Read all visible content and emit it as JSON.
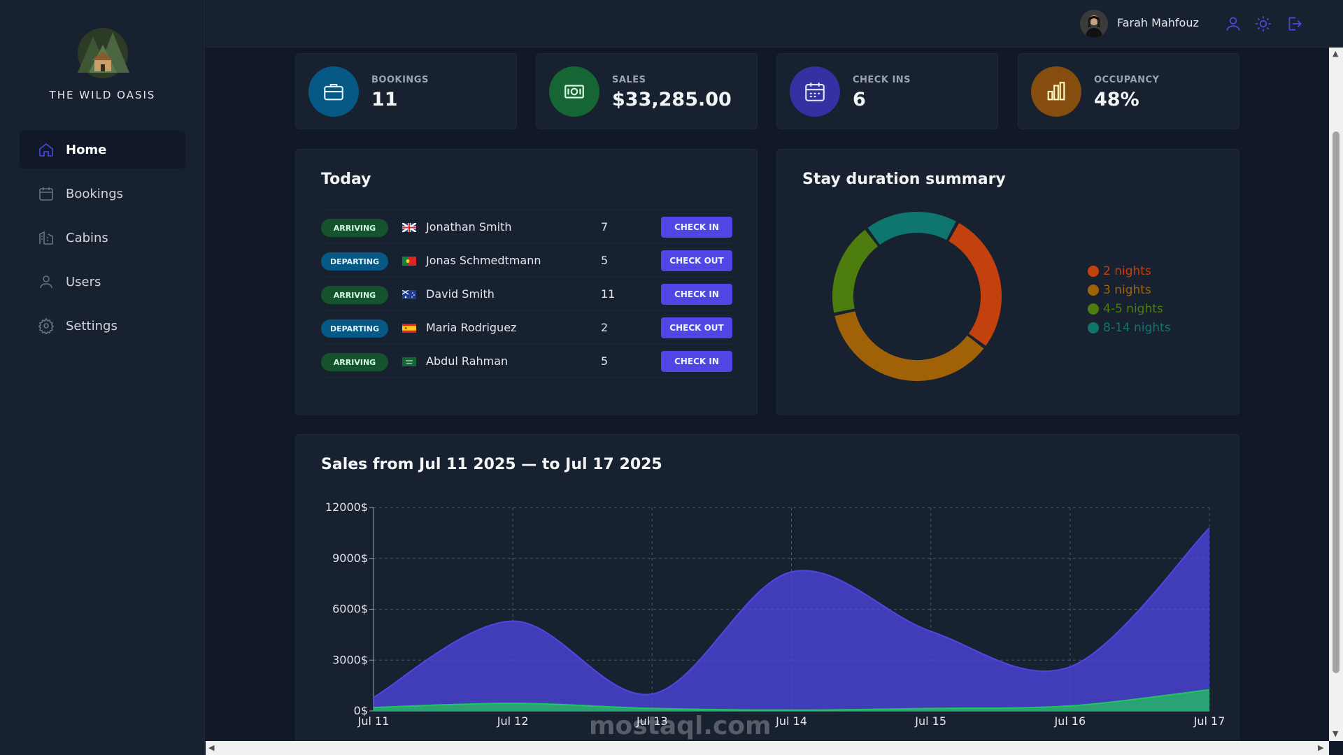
{
  "app": {
    "brand": "THE WILD OASIS"
  },
  "sidebar": {
    "items": [
      {
        "label": "Home",
        "icon": "home-icon",
        "active": true
      },
      {
        "label": "Bookings",
        "icon": "calendar-icon",
        "active": false
      },
      {
        "label": "Cabins",
        "icon": "building-icon",
        "active": false
      },
      {
        "label": "Users",
        "icon": "user-icon",
        "active": false
      },
      {
        "label": "Settings",
        "icon": "gear-icon",
        "active": false
      }
    ]
  },
  "header": {
    "user_name": "Farah Mahfouz",
    "icons": [
      "user-icon",
      "sun-icon",
      "logout-icon"
    ]
  },
  "stats": [
    {
      "label": "BOOKINGS",
      "value": "11",
      "color": "#075985",
      "icon": "briefcase-icon"
    },
    {
      "label": "SALES",
      "value": "$33,285.00",
      "color": "#166534",
      "icon": "banknote-icon"
    },
    {
      "label": "CHECK INS",
      "value": "6",
      "color": "#3730a3",
      "icon": "calendar-days-icon"
    },
    {
      "label": "OCCUPANCY",
      "value": "48%",
      "color": "#854d0e",
      "icon": "chart-bar-icon"
    }
  ],
  "today": {
    "title": "Today",
    "rows": [
      {
        "status": "ARRIVING",
        "flag": "uk-flag-icon",
        "guest": "Jonathan Smith",
        "nights": "7",
        "action": "CHECK IN"
      },
      {
        "status": "DEPARTING",
        "flag": "portugal-flag-icon",
        "guest": "Jonas Schmedtmann",
        "nights": "5",
        "action": "CHECK OUT"
      },
      {
        "status": "ARRIVING",
        "flag": "australia-flag-icon",
        "guest": "David Smith",
        "nights": "11",
        "action": "CHECK IN"
      },
      {
        "status": "DEPARTING",
        "flag": "spain-flag-icon",
        "guest": "Maria Rodriguez",
        "nights": "2",
        "action": "CHECK OUT"
      },
      {
        "status": "ARRIVING",
        "flag": "saudi-flag-icon",
        "guest": "Abdul Rahman",
        "nights": "5",
        "action": "CHECK IN"
      }
    ]
  },
  "duration": {
    "title": "Stay duration summary",
    "chart_data": {
      "type": "pie",
      "categories": [
        "2 nights",
        "3 nights",
        "4-5 nights",
        "8-14 nights"
      ],
      "values": [
        3,
        4,
        2,
        2
      ],
      "colors": [
        "#c2410c",
        "#a16207",
        "#4d7c0f",
        "#0f766e"
      ],
      "legend": "right"
    }
  },
  "sales": {
    "title": "Sales from Jul 11 2025 — to Jul 17 2025",
    "chart_data": {
      "type": "area",
      "categories": [
        "Jul 11",
        "Jul 12",
        "Jul 13",
        "Jul 14",
        "Jul 15",
        "Jul 16",
        "Jul 17"
      ],
      "y_ticks": [
        "0$",
        "3000$",
        "6000$",
        "9000$",
        "12000$"
      ],
      "ylim": [
        0,
        12000
      ],
      "grid": true,
      "series": [
        {
          "values": [
            800,
            5300,
            1000,
            8200,
            4700,
            2600,
            10800
          ],
          "color": "#4f46e5"
        },
        {
          "values": [
            200,
            450,
            150,
            50,
            150,
            300,
            1250
          ],
          "color": "#22c55e"
        }
      ]
    }
  },
  "watermark": "mostaql.com"
}
